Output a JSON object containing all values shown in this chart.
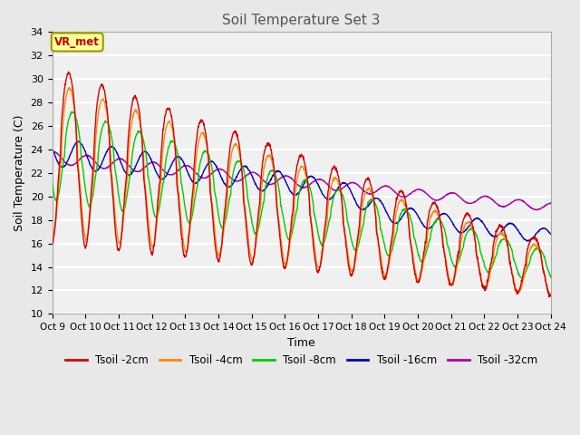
{
  "title": "Soil Temperature Set 3",
  "xlabel": "Time",
  "ylabel": "Soil Temperature (C)",
  "ylim": [
    10,
    34
  ],
  "yticks": [
    10,
    12,
    14,
    16,
    18,
    20,
    22,
    24,
    26,
    28,
    30,
    32,
    34
  ],
  "x_labels": [
    "Oct 9",
    "Oct 10",
    "Oct 11",
    "Oct 12",
    "Oct 13",
    "Oct 14",
    "Oct 15",
    "Oct 16",
    "Oct 17",
    "Oct 18",
    "Oct 19",
    "Oct 20",
    "Oct 21",
    "Oct 22",
    "Oct 23",
    "Oct 24"
  ],
  "annotation_text": "VR_met",
  "annotation_color": "#cc0000",
  "annotation_bg": "#ffff99",
  "annotation_edge": "#999900",
  "legend_entries": [
    "Tsoil -2cm",
    "Tsoil -4cm",
    "Tsoil -8cm",
    "Tsoil -16cm",
    "Tsoil -32cm"
  ],
  "line_colors": [
    "#dd0000",
    "#ff8800",
    "#00cc00",
    "#0000cc",
    "#aa00aa"
  ],
  "background_color": "#e8e8e8",
  "plot_bg_color": "#f0f0f0",
  "grid_color": "#ffffff",
  "figsize": [
    6.4,
    4.8
  ],
  "dpi": 100
}
